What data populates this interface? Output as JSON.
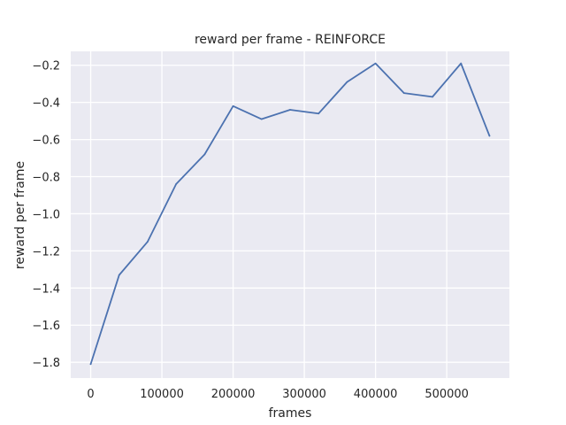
{
  "chart_data": {
    "type": "line",
    "title": "reward per frame - REINFORCE",
    "xlabel": "frames",
    "ylabel": "reward per frame",
    "xlim": [
      -28000,
      588000
    ],
    "ylim": [
      -1.885,
      -0.125
    ],
    "xticks": [
      0,
      100000,
      200000,
      300000,
      400000,
      500000
    ],
    "yticks": [
      -1.8,
      -1.6,
      -1.4,
      -1.2,
      -1.0,
      -0.8,
      -0.6,
      -0.4,
      -0.2
    ],
    "xtick_labels": [
      "0",
      "100000",
      "200000",
      "300000",
      "400000",
      "500000"
    ],
    "ytick_labels": [
      "−1.8",
      "−1.6",
      "−1.4",
      "−1.2",
      "−1.0",
      "−0.8",
      "−0.6",
      "−0.4",
      "−0.2"
    ],
    "grid": true,
    "series": [
      {
        "x": [
          0,
          40000,
          80000,
          120000,
          160000,
          200000,
          240000,
          280000,
          320000,
          360000,
          400000,
          440000,
          480000,
          520000,
          560000
        ],
        "values": [
          -1.81,
          -1.33,
          -1.15,
          -0.84,
          -0.68,
          -0.42,
          -0.49,
          -0.44,
          -0.46,
          -0.29,
          -0.19,
          -0.35,
          -0.37,
          -0.19,
          -0.58
        ],
        "color": "#4c72b0"
      }
    ],
    "colors": {
      "background": "#eaeaf2",
      "grid": "#ffffff",
      "line": "#4c72b0",
      "text": "#262626"
    }
  }
}
